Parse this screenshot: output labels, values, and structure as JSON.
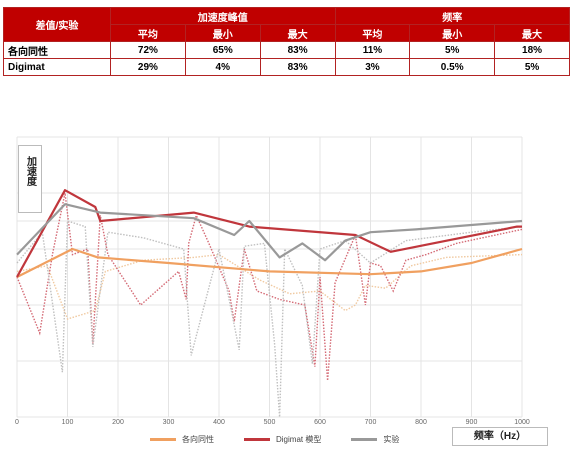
{
  "table": {
    "corner": "差值/实验",
    "group1": "加速度峰值",
    "group2": "频率",
    "sub": [
      "平均",
      "最小",
      "最大",
      "平均",
      "最小",
      "最大"
    ],
    "rows": [
      {
        "label": "各向同性",
        "cells": [
          "72%",
          "65%",
          "83%",
          "11%",
          "5%",
          "18%"
        ]
      },
      {
        "label": "Digimat",
        "cells": [
          "29%",
          "4%",
          "83%",
          "3%",
          "0.5%",
          "5%"
        ]
      }
    ]
  },
  "chart_data": {
    "type": "line",
    "ylabel": "加速度",
    "xlabel": "频率（Hz）",
    "xlim": [
      0,
      1000
    ],
    "ylim": [
      0,
      100
    ],
    "x_ticks": [
      0,
      100,
      200,
      300,
      400,
      500,
      600,
      700,
      800,
      900,
      1000
    ],
    "y_ticks": [
      0,
      20,
      40,
      60,
      70,
      80,
      100
    ],
    "grid": true,
    "legend_position": "bottom",
    "series": [
      {
        "name": "各向同性",
        "color": "#f0a060",
        "style": "solid",
        "x": [
          0,
          110,
          160,
          300,
          500,
          700,
          800,
          900,
          1000
        ],
        "y": [
          50,
          60,
          57,
          55,
          52,
          51,
          52,
          55,
          60
        ]
      },
      {
        "name": "Digimat 模型",
        "color": "#c0363c",
        "style": "solid",
        "x": [
          0,
          95,
          155,
          165,
          350,
          460,
          670,
          740,
          990,
          1000
        ],
        "y": [
          50,
          81,
          75,
          70,
          73,
          68,
          65,
          59,
          68,
          68
        ]
      },
      {
        "name": "实验",
        "color": "#999999",
        "style": "solid",
        "x": [
          0,
          95,
          165,
          350,
          430,
          460,
          520,
          565,
          610,
          650,
          700,
          790,
          1000
        ],
        "y": [
          58,
          76,
          73,
          71,
          65,
          70,
          57,
          62,
          56,
          63,
          66,
          67,
          70
        ]
      }
    ],
    "background_series": [
      {
        "color": "#f0c9a0",
        "style": "dotted",
        "x": [
          0,
          60,
          100,
          155,
          175,
          250,
          350,
          400,
          480,
          540,
          600,
          650,
          670,
          690,
          730,
          780,
          850,
          1000
        ],
        "y": [
          52,
          54,
          35,
          38,
          52,
          56,
          57,
          58,
          49,
          44,
          45,
          38,
          40,
          47,
          46,
          54,
          57,
          58
        ]
      },
      {
        "color": "#d46a75",
        "style": "dotted",
        "x": [
          0,
          45,
          70,
          95,
          110,
          140,
          150,
          165,
          180,
          245,
          320,
          335,
          340,
          355,
          380,
          420,
          430,
          450,
          475,
          520,
          570,
          590,
          600,
          615,
          630,
          670,
          690,
          700,
          720,
          745,
          770,
          810,
          870,
          1000
        ],
        "y": [
          50,
          30,
          58,
          80,
          58,
          60,
          26,
          72,
          58,
          40,
          52,
          42,
          62,
          72,
          62,
          45,
          34,
          60,
          45,
          42,
          40,
          18,
          50,
          13,
          48,
          65,
          40,
          55,
          54,
          45,
          56,
          58,
          62,
          67
        ]
      },
      {
        "color": "#c0c0c0",
        "style": "dotted",
        "x": [
          0,
          50,
          90,
          100,
          135,
          150,
          180,
          250,
          330,
          345,
          400,
          440,
          450,
          490,
          510,
          520,
          530,
          565,
          585,
          600,
          650,
          700,
          770,
          900,
          1000
        ],
        "y": [
          55,
          66,
          16,
          70,
          68,
          25,
          66,
          64,
          60,
          22,
          60,
          24,
          61,
          62,
          26,
          0,
          60,
          47,
          19,
          60,
          63,
          55,
          63,
          66,
          68
        ]
      }
    ]
  },
  "legend": {
    "items": [
      {
        "label": "各向同性",
        "color": "#f0a060"
      },
      {
        "label": "Digimat 模型",
        "color": "#c0363c"
      },
      {
        "label": "实验",
        "color": "#999999"
      }
    ]
  }
}
